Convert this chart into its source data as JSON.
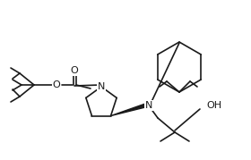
{
  "bg": "#ffffff",
  "lw": 1.2,
  "lw_thick": 2.2,
  "font_size": 7.5,
  "atom_color": "#1a1a1a",
  "bond_color": "#1a1a1a",
  "atoms": {
    "O_label": "O",
    "N1_label": "N",
    "N2_label": "N",
    "OH_label": "OH"
  }
}
